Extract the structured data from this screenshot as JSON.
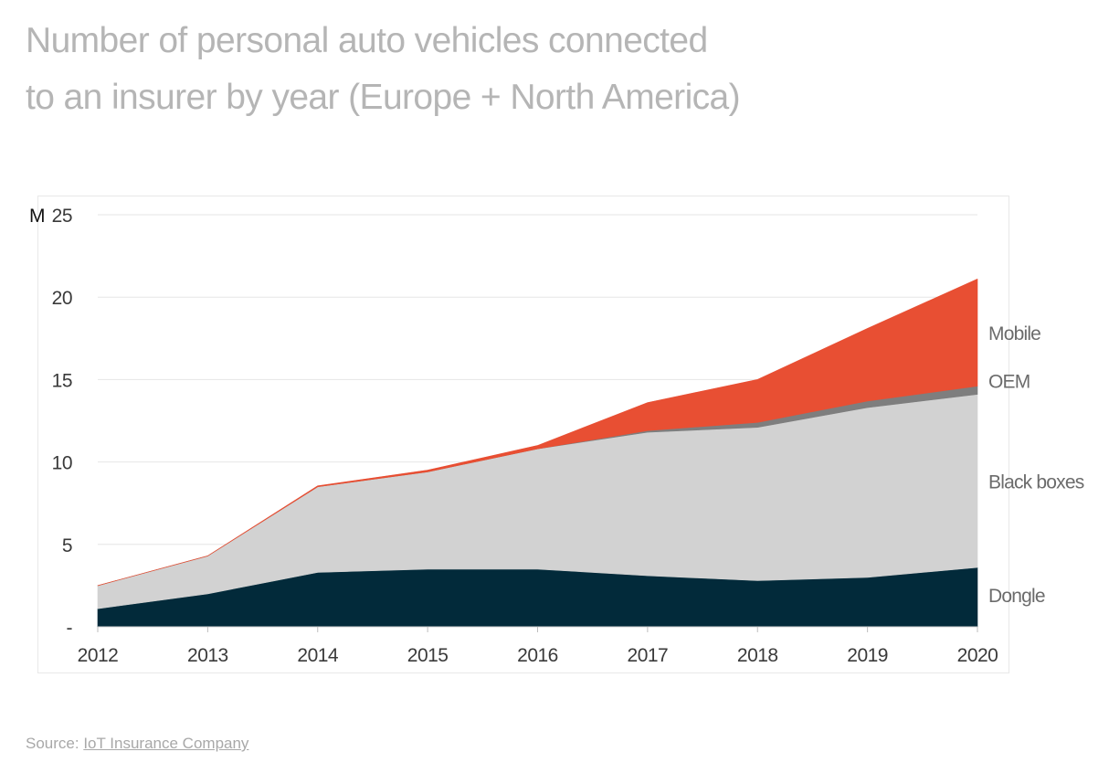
{
  "title": {
    "line1": "Number of personal auto vehicles connected",
    "line2": "to an insurer by year (Europe + North America)"
  },
  "source": {
    "prefix": "Source: ",
    "link_text": "IoT Insurance Company"
  },
  "colors": {
    "Dongle": "#022a3a",
    "Black boxes": "#d2d2d2",
    "OEM": "#7e7e7e",
    "Mobile": "#e84f33",
    "title": "#b5b5b5",
    "axis_text": "#3a3a3a",
    "label_text": "#6b6b6b",
    "gridline": "#e6e6e6"
  },
  "chart_data": {
    "type": "area",
    "stacked": true,
    "x": [
      "2012",
      "2013",
      "2014",
      "2015",
      "2016",
      "2017",
      "2018",
      "2019",
      "2020"
    ],
    "series": [
      {
        "name": "Dongle",
        "values": [
          1.1,
          2.0,
          3.3,
          3.5,
          3.5,
          3.1,
          2.8,
          3.0,
          3.6
        ]
      },
      {
        "name": "Black boxes",
        "values": [
          1.4,
          2.3,
          5.2,
          5.9,
          7.3,
          8.7,
          9.3,
          10.3,
          10.5
        ]
      },
      {
        "name": "OEM",
        "values": [
          0.0,
          0.0,
          0.0,
          0.0,
          0.0,
          0.1,
          0.3,
          0.4,
          0.5
        ]
      },
      {
        "name": "Mobile",
        "values": [
          0.0,
          0.0,
          0.05,
          0.1,
          0.2,
          1.7,
          2.6,
          4.4,
          6.5
        ]
      }
    ],
    "yunit": "M",
    "yticks": [
      0,
      5,
      10,
      15,
      20,
      25
    ],
    "ytick_labels": [
      "-",
      "5",
      "10",
      "15",
      "20",
      "25"
    ],
    "ylim": [
      0,
      25
    ],
    "grid": true,
    "legend": "direct labels at right end of each area"
  }
}
